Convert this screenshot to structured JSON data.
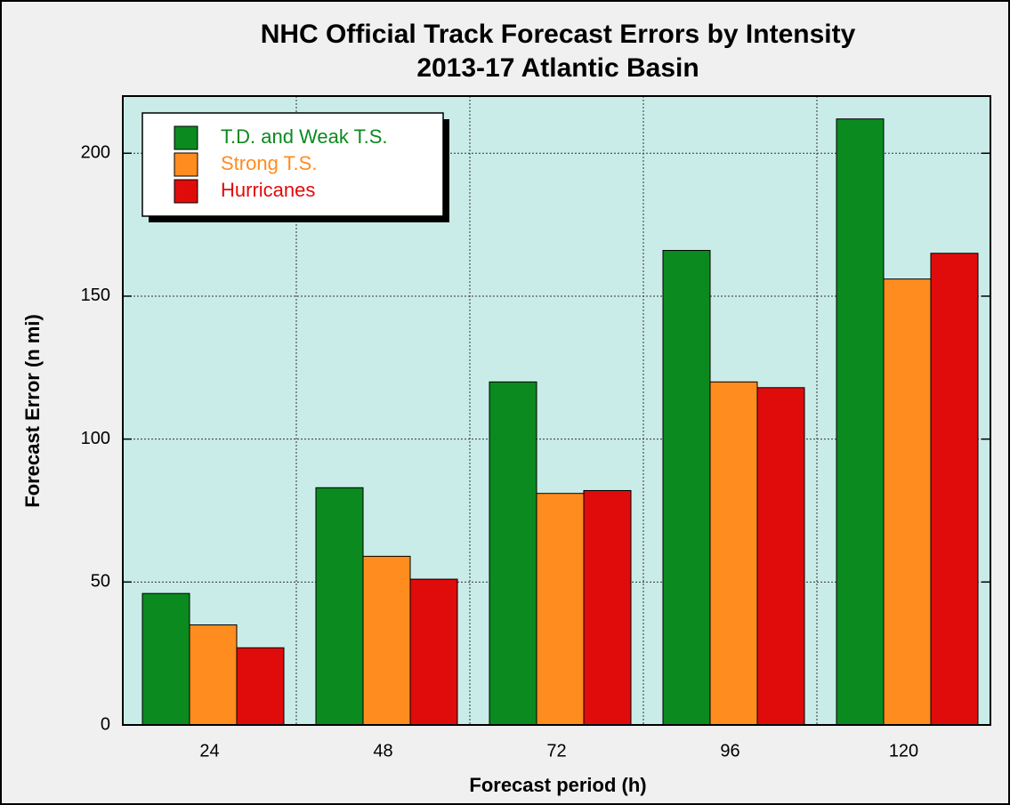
{
  "chart_data": {
    "type": "bar",
    "title": "NHC Official Track Forecast Errors by Intensity",
    "subtitle": "2013-17 Atlantic Basin",
    "x_label": "Forecast period (h)",
    "y_label": "Forecast Error (n mi)",
    "categories": [
      "24",
      "48",
      "72",
      "96",
      "120"
    ],
    "series": [
      {
        "name": "T.D. and Weak T.S.",
        "color": "#0b8a1f",
        "values": [
          46,
          83,
          120,
          166,
          212
        ]
      },
      {
        "name": "Strong T.S.",
        "color": "#ff8c1e",
        "values": [
          35,
          59,
          81,
          120,
          156
        ]
      },
      {
        "name": "Hurricanes",
        "color": "#e00b0b",
        "values": [
          27,
          51,
          82,
          118,
          165
        ]
      }
    ],
    "ylim": [
      0,
      220
    ],
    "yticks": [
      0,
      50,
      100,
      150,
      200
    ],
    "grid": true,
    "legend": "upper left"
  }
}
